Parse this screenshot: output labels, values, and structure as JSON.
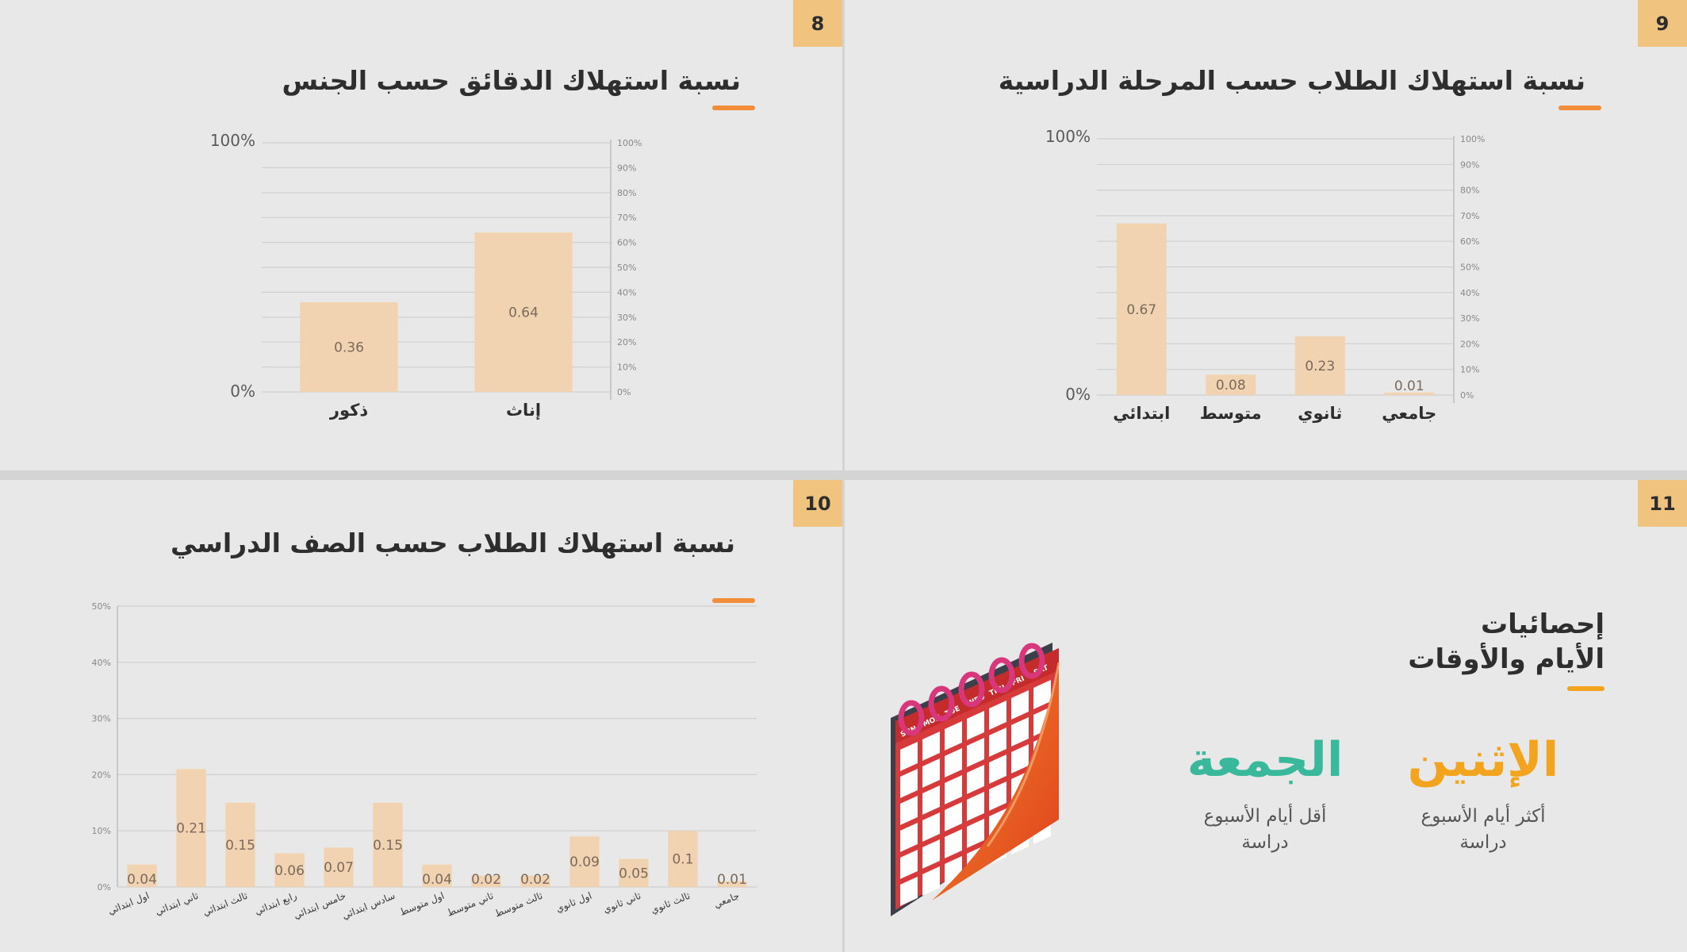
{
  "slides": {
    "s8": {
      "number": "8",
      "title": "نسبة استهلاك الدقائق حسب الجنس"
    },
    "s9": {
      "number": "9",
      "title": "نسبة استهلاك الطلاب حسب المرحلة الدراسية"
    },
    "s10": {
      "number": "10",
      "title": "نسبة استهلاك الطلاب حسب الصف الدراسي"
    },
    "s11": {
      "number": "11",
      "title_line1": "إحصائيات",
      "title_line2": "الأيام والأوقات",
      "most_day": "الإثنين",
      "most_desc_1": "أكثر أيام الأسبوع",
      "most_desc_2": "دراسة",
      "least_day": "الجمعة",
      "least_desc_1": "أقل أيام الأسبوع",
      "least_desc_2": "دراسة",
      "calendar_days": [
        "SUN",
        "MON",
        "TUE",
        "WED",
        "THU",
        "FRI",
        "SAT"
      ]
    }
  },
  "colors": {
    "bar": "#f1d3b1",
    "accent_orange": "#f28d3a",
    "number_badge": "#f0c47e",
    "most_day": "#f2a41f",
    "least_day": "#3ab89c"
  },
  "chart_data": [
    {
      "id": "gender",
      "type": "bar",
      "categories": [
        "ذكور",
        "إناث"
      ],
      "values": [
        0.36,
        0.64
      ],
      "ylim": [
        0,
        1
      ],
      "axis_end_labels": [
        "0%",
        "100%"
      ],
      "secondary_ticks": [
        "0%",
        "10%",
        "20%",
        "30%",
        "40%",
        "50%",
        "60%",
        "70%",
        "80%",
        "90%",
        "100%"
      ],
      "grid": true
    },
    {
      "id": "stage",
      "type": "bar",
      "categories": [
        "ابتدائي",
        "متوسط",
        "ثانوي",
        "جامعي"
      ],
      "values": [
        0.67,
        0.08,
        0.23,
        0.01
      ],
      "ylim": [
        0,
        1
      ],
      "axis_end_labels": [
        "0%",
        "100%"
      ],
      "secondary_ticks": [
        "0%",
        "10%",
        "20%",
        "30%",
        "40%",
        "50%",
        "60%",
        "70%",
        "80%",
        "90%",
        "100%"
      ],
      "grid": true
    },
    {
      "id": "grade",
      "type": "bar",
      "categories": [
        "اول ابتدائي",
        "ثاني ابتدائي",
        "ثالث ابتدائي",
        "رابع ابتدائي",
        "خامس ابتدائي",
        "سادس ابتدائي",
        "اول متوسط",
        "ثاني متوسط",
        "ثالث متوسط",
        "اول ثانوي",
        "ثاني ثانوي",
        "ثالث ثانوي",
        "جامعي"
      ],
      "values": [
        0.04,
        0.21,
        0.15,
        0.06,
        0.07,
        0.15,
        0.04,
        0.02,
        0.02,
        0.09,
        0.05,
        0.1,
        0.01
      ],
      "ylim": [
        0,
        0.5
      ],
      "yticks": [
        "0%",
        "10%",
        "20%",
        "30%",
        "40%",
        "50%"
      ],
      "grid": true
    }
  ]
}
